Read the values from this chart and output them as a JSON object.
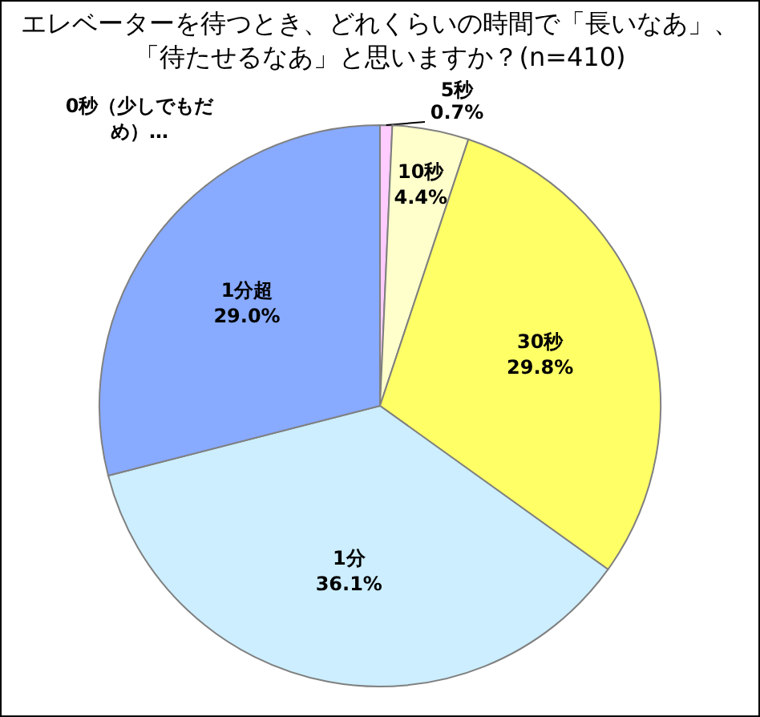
{
  "chart_data": {
    "type": "pie",
    "title": "エレベーターを待つとき、どれくらいの時間で「長いなあ」、「待たせるなあ」と思いますか？(n=410)",
    "categories": [
      "0秒（少しでもだめ）…",
      "5秒",
      "10秒",
      "30秒",
      "1分",
      "1分超"
    ],
    "values": [
      0,
      0.7,
      4.4,
      29.8,
      36.1,
      29.0
    ],
    "value_labels": [
      null,
      "0.7%",
      "4.4%",
      "29.8%",
      "36.1%",
      "29.0%"
    ],
    "colors": [
      "#ff99cc",
      "#ffccff",
      "#ffffcc",
      "#ffff66",
      "#cceeff",
      "#88aaff"
    ]
  }
}
